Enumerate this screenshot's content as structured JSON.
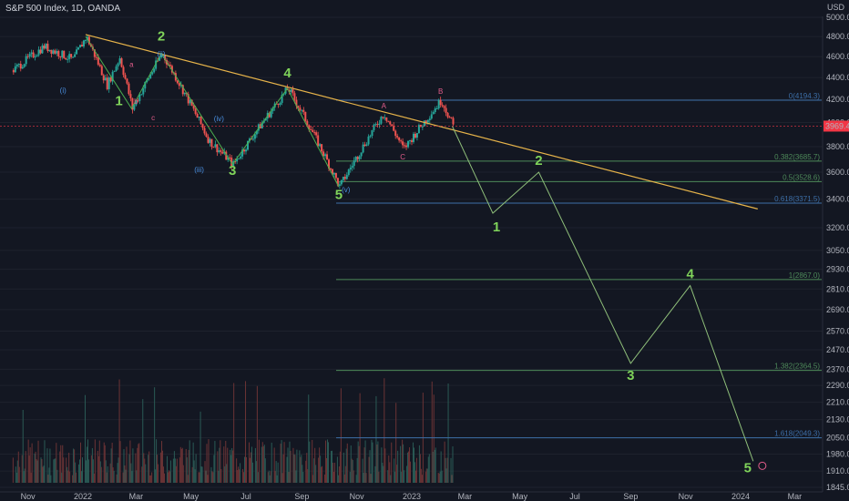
{
  "header": {
    "title": "S&P 500 Index, 1D, OANDA",
    "currency": "USD"
  },
  "price_badge": {
    "text": "3969.4",
    "color": "#f23645"
  },
  "colors": {
    "bg": "#131722",
    "up": "#26a69a",
    "down": "#ef5350",
    "trendline": "#e6b34a",
    "projection": "#8fbf7a",
    "fib_green": "#4e8a5a",
    "fib_blue": "#3d6fa8",
    "grid": "#1e222d"
  },
  "chart_data": {
    "type": "line",
    "title": "S&P 500 Index, 1D, OANDA",
    "y_scale": "log",
    "ylim": [
      1845.0,
      5060.0
    ],
    "y_ticks": [
      "5000.0",
      "4800.0",
      "4600.0",
      "4400.0",
      "4200.0",
      "4000.0",
      "3800.0",
      "3600.0",
      "3400.0",
      "3200.0",
      "3050.0",
      "2930.0",
      "2810.0",
      "2690.0",
      "2570.0",
      "2470.0",
      "2370.0",
      "2290.0",
      "2210.0",
      "2130.0",
      "2050.0",
      "1980.0",
      "1910.0",
      "1845.0"
    ],
    "x_ticks": [
      "Nov",
      "2022",
      "Mar",
      "May",
      "Jul",
      "Sep",
      "Nov",
      "2023",
      "Mar",
      "May",
      "Jul",
      "Sep",
      "Nov",
      "2024",
      "Mar"
    ],
    "price_path": [
      [
        "2021-10-15",
        4470
      ],
      [
        "2021-11-18",
        4700
      ],
      [
        "2021-12-20",
        4570
      ],
      [
        "2022-01-04",
        4800
      ],
      [
        "2022-01-27",
        4330
      ],
      [
        "2022-02-10",
        4590
      ],
      [
        "2022-02-24",
        4120
      ],
      [
        "2022-03-29",
        4630
      ],
      [
        "2022-05-20",
        3850
      ],
      [
        "2022-06-16",
        3660
      ],
      [
        "2022-08-16",
        4300
      ],
      [
        "2022-10-12",
        3490
      ],
      [
        "2022-11-30",
        4080
      ],
      [
        "2022-12-22",
        3780
      ],
      [
        "2023-02-02",
        4195
      ],
      [
        "2023-02-15",
        3969
      ]
    ],
    "projection": {
      "name": "Projected Elliott waves",
      "points": [
        [
          "2023-02-15",
          3969
        ],
        [
          "2023-04-01",
          3300
        ],
        [
          "2023-05-22",
          3600
        ],
        [
          "2023-09-01",
          2400
        ],
        [
          "2023-11-06",
          2830
        ],
        [
          "2024-01-15",
          1950
        ]
      ],
      "labels": [
        "1",
        "2",
        "3",
        "4",
        "5"
      ]
    },
    "trendline": {
      "from": [
        "2022-01-04",
        4820
      ],
      "to": [
        "2024-01-20",
        3330
      ]
    },
    "fib_levels": [
      {
        "label": "0(4194.3)",
        "value": 4194.3,
        "color": "blue"
      },
      {
        "label": "0.382(3685.7)",
        "value": 3685.7,
        "color": "green"
      },
      {
        "label": "0.5(3528.6)",
        "value": 3528.6,
        "color": "green"
      },
      {
        "label": "0.618(3371.5)",
        "value": 3371.5,
        "color": "blue"
      },
      {
        "label": "1(2867.0)",
        "value": 2867.0,
        "color": "green"
      },
      {
        "label": "1.382(2364.5)",
        "value": 2364.5,
        "color": "green"
      },
      {
        "label": "1.618(2049.3)",
        "value": 2049.3,
        "color": "blue"
      }
    ],
    "history_wave_labels": {
      "green": [
        "1",
        "2",
        "3",
        "4",
        "5"
      ],
      "blue": [
        "(i)",
        "(ii)",
        "(iii)",
        "(iv)",
        "(v)"
      ],
      "pink": [
        "A",
        "B",
        "C",
        "a",
        "b",
        "c"
      ]
    },
    "volume": "daily volume bars along bottom"
  }
}
